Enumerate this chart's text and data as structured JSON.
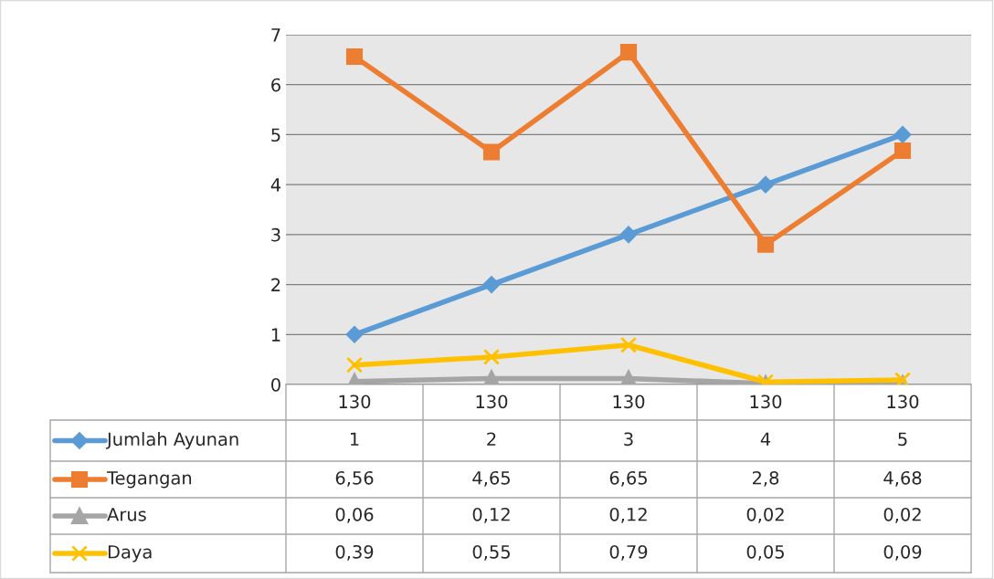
{
  "chart_data": {
    "type": "line",
    "categories": [
      "130",
      "130",
      "130",
      "130",
      "130"
    ],
    "series": [
      {
        "name": "Jumlah Ayunan",
        "color": "#5b9bd5",
        "marker": "diamond",
        "values": [
          1,
          2,
          3,
          4,
          5
        ],
        "value_labels": [
          "1",
          "2",
          "3",
          "4",
          "5"
        ]
      },
      {
        "name": "Tegangan",
        "color": "#ed7d31",
        "marker": "square",
        "values": [
          6.56,
          4.65,
          6.65,
          2.8,
          4.68
        ],
        "value_labels": [
          "6,56",
          "4,65",
          "6,65",
          "2,8",
          "4,68"
        ]
      },
      {
        "name": "Arus",
        "color": "#a5a5a5",
        "marker": "triangle",
        "values": [
          0.06,
          0.12,
          0.12,
          0.02,
          0.02
        ],
        "value_labels": [
          "0,06",
          "0,12",
          "0,12",
          "0,02",
          "0,02"
        ]
      },
      {
        "name": "Daya",
        "color": "#ffc000",
        "marker": "cross",
        "values": [
          0.39,
          0.55,
          0.79,
          0.05,
          0.09
        ],
        "value_labels": [
          "0,39",
          "0,55",
          "0,79",
          "0,05",
          "0,09"
        ]
      }
    ],
    "ylim": [
      0,
      7
    ],
    "yticks": [
      0,
      1,
      2,
      3,
      4,
      5,
      6,
      7
    ],
    "grid": "y",
    "legend": "bottom"
  }
}
